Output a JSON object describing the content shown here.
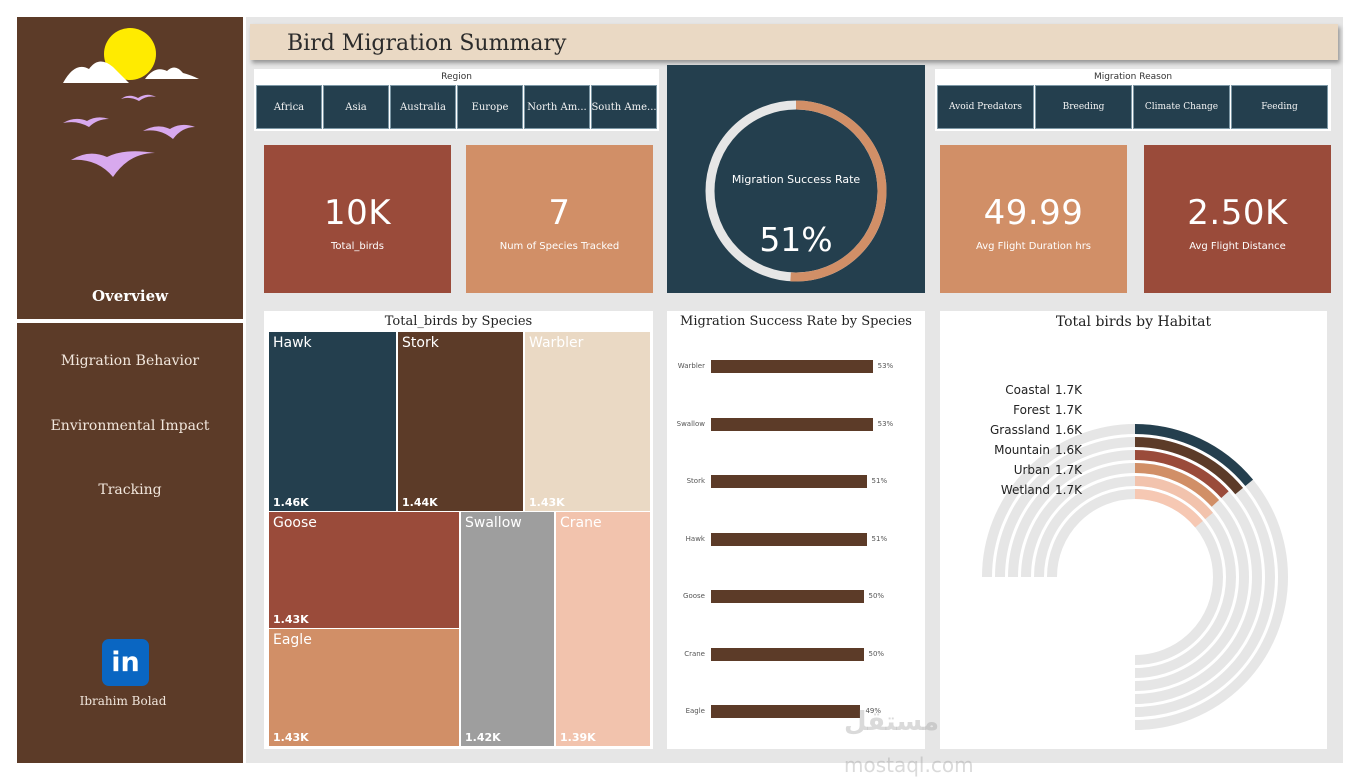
{
  "report": {
    "title": "Bird Migration Summary"
  },
  "sidebar": {
    "nav": [
      {
        "label": "Overview"
      },
      {
        "label": "Migration Behavior"
      },
      {
        "label": "Environmental Impact"
      },
      {
        "label": "Tracking"
      }
    ],
    "linkedin_icon_text": "in",
    "author": "Ibrahim Bolad",
    "colors": {
      "background": "#5c3b28",
      "sun": "#ffeb00",
      "birds": "#d8a9ee"
    }
  },
  "region_slicer": {
    "title": "Region",
    "options": [
      "Africa",
      "Asia",
      "Australia",
      "Europe",
      "North Am...",
      "South Ame..."
    ]
  },
  "reason_slicer": {
    "title": "Migration Reason",
    "options": [
      "Avoid Predators",
      "Breeding",
      "Climate Change",
      "Feeding"
    ]
  },
  "kpis": [
    {
      "value": "10K",
      "label": "Total_birds",
      "color": "#9a4b3a"
    },
    {
      "value": "7",
      "label": "Num of Species Tracked",
      "color": "#d18f67"
    },
    {
      "value": "49.99",
      "label": "Avg Flight Duration hrs",
      "color": "#d18f67"
    },
    {
      "value": "2.50K",
      "label": "Avg Flight Distance",
      "color": "#9a4b3a"
    }
  ],
  "gauge": {
    "label": "Migration Success Rate",
    "value": "51%",
    "fraction": 0.51,
    "fill_color": "#d18f67",
    "track_color": "#e6e6e6"
  },
  "treemap": {
    "title": "Total_birds by Species",
    "tiles": [
      {
        "name": "Hawk",
        "value": "1.46K",
        "color": "#243f4e"
      },
      {
        "name": "Stork",
        "value": "1.44K",
        "color": "#5c3b28"
      },
      {
        "name": "Warbler",
        "value": "1.43K",
        "color": "#ead9c4"
      },
      {
        "name": "Goose",
        "value": "1.43K",
        "color": "#9a4b3a"
      },
      {
        "name": "Swallow",
        "value": "1.42K",
        "color": "#9e9e9e"
      },
      {
        "name": "Crane",
        "value": "1.39K",
        "color": "#f2c3ad"
      },
      {
        "name": "Eagle",
        "value": "1.43K",
        "color": "#d18f67"
      }
    ]
  },
  "bar_chart": {
    "title": "Migration Success Rate by Species",
    "color": "#5c3b28",
    "categories": [
      "Warbler",
      "Swallow",
      "Stork",
      "Hawk",
      "Goose",
      "Crane",
      "Eagle"
    ],
    "values": [
      53,
      53,
      51,
      51,
      50,
      50,
      49
    ],
    "labels": [
      "53%",
      "53%",
      "51%",
      "51%",
      "50%",
      "50%",
      "49%"
    ]
  },
  "radial_chart": {
    "title": "Total birds by Habitat",
    "track_color": "#e6e6e6",
    "items": [
      {
        "name": "Coastal",
        "label": "1.7K",
        "value": 1.7,
        "color": "#243f4e"
      },
      {
        "name": "Forest",
        "label": "1.7K",
        "value": 1.7,
        "color": "#5c3b28"
      },
      {
        "name": "Grassland",
        "label": "1.6K",
        "value": 1.6,
        "color": "#9a4b3a"
      },
      {
        "name": "Mountain",
        "label": "1.6K",
        "value": 1.6,
        "color": "#d18f67"
      },
      {
        "name": "Urban",
        "label": "1.7K",
        "value": 1.7,
        "color": "#f2c3ad"
      },
      {
        "name": "Wetland",
        "label": "1.7K",
        "value": 1.7,
        "color": "#f6c8b3"
      }
    ]
  },
  "watermark": {
    "arabic": "مستقل",
    "latin": "mostaql.com"
  }
}
